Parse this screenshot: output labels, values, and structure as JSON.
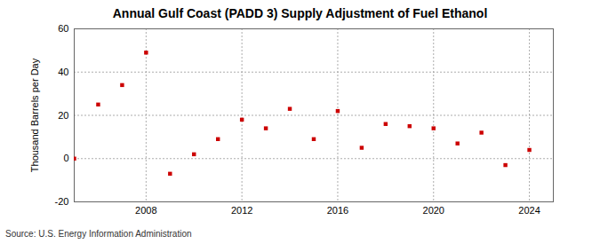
{
  "chart_data": {
    "type": "scatter",
    "title": "Annual Gulf Coast (PADD 3) Supply Adjustment of Fuel Ethanol",
    "caption": "Source: U.S. Energy Information Administration",
    "y_label": "Thousand Barrels per Day",
    "x": [
      2005,
      2006,
      2007,
      2008,
      2009,
      2010,
      2011,
      2012,
      2013,
      2014,
      2015,
      2016,
      2017,
      2018,
      2019,
      2020,
      2021,
      2022,
      2023,
      2024
    ],
    "values": [
      0,
      25,
      34,
      49,
      -7,
      2,
      9,
      18,
      14,
      23,
      9,
      22,
      5,
      16,
      15,
      14,
      7,
      12,
      -3,
      4
    ],
    "color": "#cc0000",
    "marker": "square",
    "xlim": [
      2005,
      2025
    ],
    "xticks": [
      2008,
      2012,
      2016,
      2020,
      2024
    ],
    "ylim": [
      -20,
      60
    ],
    "yticks": [
      -20,
      0,
      20,
      40,
      60
    ],
    "grid": true
  }
}
